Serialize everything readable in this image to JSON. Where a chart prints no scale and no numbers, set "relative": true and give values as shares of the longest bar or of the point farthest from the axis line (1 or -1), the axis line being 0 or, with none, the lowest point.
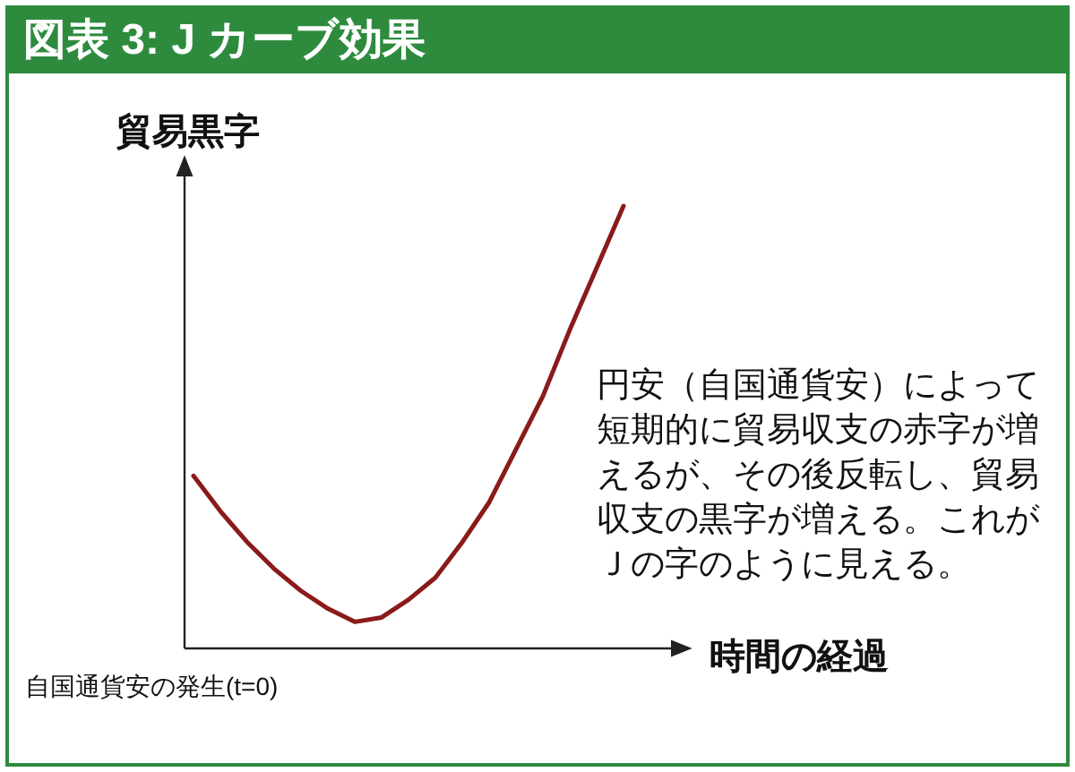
{
  "chart_data": {
    "type": "line",
    "title": "図表 3: J カーブ効果",
    "ylabel": "貿易黒字",
    "xlabel": "時間の経過",
    "relative": true,
    "marker": "none",
    "categories": [
      null,
      null,
      null,
      null,
      null,
      null,
      null,
      null,
      null,
      null,
      null,
      null,
      null,
      null,
      null,
      null,
      null
    ],
    "series": [
      {
        "color": "#8b1a1a",
        "values": [
          0.39,
          0.31,
          0.24,
          0.18,
          0.13,
          0.09,
          0.06,
          0.07,
          0.11,
          0.16,
          0.24,
          0.33,
          0.45,
          0.57,
          0.72,
          0.86,
          1
        ]
      }
    ],
    "annotations": [
      "円安（自国通貨安）によって短期的に貿易収支の赤字が増えるが、その後反転し、貿易収支の黒字が増える。これがＪの字のように見える。",
      "自国通貨安の発生(t=0)"
    ]
  }
}
